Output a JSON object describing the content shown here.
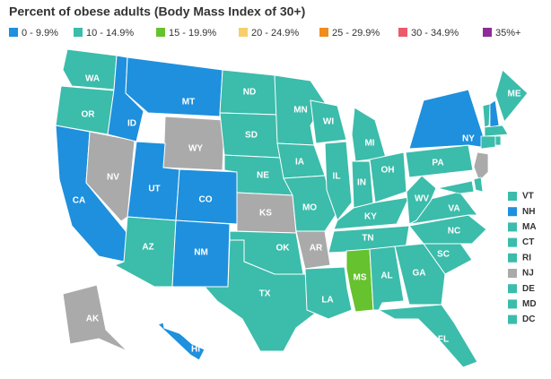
{
  "title": "Percent of obese adults (Body Mass Index of 30+)",
  "legend": [
    {
      "label": "0 - 9.9%",
      "color": "#1e90dd"
    },
    {
      "label": "10 - 14.9%",
      "color": "#3cbcab"
    },
    {
      "label": "15 - 19.9%",
      "color": "#66c22e"
    },
    {
      "label": "20 - 24.9%",
      "color": "#f5cf6b"
    },
    {
      "label": "25 - 29.9%",
      "color": "#f08c1e"
    },
    {
      "label": "30 - 34.9%",
      "color": "#ea5a6a"
    },
    {
      "label": "35%+",
      "color": "#8e2b99"
    }
  ],
  "states": [
    {
      "label": "WA",
      "color": "#3cbcab"
    },
    {
      "label": "OR",
      "color": "#3cbcab"
    },
    {
      "label": "CA",
      "color": "#1e90dd"
    },
    {
      "label": "NV",
      "color": "#aaaaaa"
    },
    {
      "label": "ID",
      "color": "#1e90dd"
    },
    {
      "label": "MT",
      "color": "#1e90dd"
    },
    {
      "label": "WY",
      "color": "#aaaaaa"
    },
    {
      "label": "UT",
      "color": "#1e90dd"
    },
    {
      "label": "CO",
      "color": "#1e90dd"
    },
    {
      "label": "AZ",
      "color": "#3cbcab"
    },
    {
      "label": "NM",
      "color": "#1e90dd"
    },
    {
      "label": "ND",
      "color": "#3cbcab"
    },
    {
      "label": "SD",
      "color": "#3cbcab"
    },
    {
      "label": "NE",
      "color": "#3cbcab"
    },
    {
      "label": "KS",
      "color": "#aaaaaa"
    },
    {
      "label": "OK",
      "color": "#3cbcab"
    },
    {
      "label": "TX",
      "color": "#3cbcab"
    },
    {
      "label": "MN",
      "color": "#3cbcab"
    },
    {
      "label": "IA",
      "color": "#3cbcab"
    },
    {
      "label": "MO",
      "color": "#3cbcab"
    },
    {
      "label": "AR",
      "color": "#aaaaaa"
    },
    {
      "label": "LA",
      "color": "#3cbcab"
    },
    {
      "label": "WI",
      "color": "#3cbcab"
    },
    {
      "label": "IL",
      "color": "#3cbcab"
    },
    {
      "label": "MI",
      "color": "#3cbcab"
    },
    {
      "label": "IN",
      "color": "#3cbcab"
    },
    {
      "label": "OH",
      "color": "#3cbcab"
    },
    {
      "label": "KY",
      "color": "#3cbcab"
    },
    {
      "label": "TN",
      "color": "#3cbcab"
    },
    {
      "label": "MS",
      "color": "#66c22e"
    },
    {
      "label": "AL",
      "color": "#3cbcab"
    },
    {
      "label": "GA",
      "color": "#3cbcab"
    },
    {
      "label": "FL",
      "color": "#3cbcab"
    },
    {
      "label": "SC",
      "color": "#3cbcab"
    },
    {
      "label": "NC",
      "color": "#3cbcab"
    },
    {
      "label": "VA",
      "color": "#3cbcab"
    },
    {
      "label": "WV",
      "color": "#3cbcab"
    },
    {
      "label": "PA",
      "color": "#3cbcab"
    },
    {
      "label": "NY",
      "color": "#1e90dd"
    },
    {
      "label": "ME",
      "color": "#3cbcab"
    },
    {
      "label": "AK",
      "color": "#aaaaaa"
    },
    {
      "label": "HI",
      "color": "#1e90dd"
    }
  ],
  "small_states": [
    {
      "label": "VT",
      "color": "#3cbcab"
    },
    {
      "label": "NH",
      "color": "#1e90dd"
    },
    {
      "label": "MA",
      "color": "#3cbcab"
    },
    {
      "label": "CT",
      "color": "#3cbcab"
    },
    {
      "label": "RI",
      "color": "#3cbcab"
    },
    {
      "label": "NJ",
      "color": "#aaaaaa"
    },
    {
      "label": "DE",
      "color": "#3cbcab"
    },
    {
      "label": "MD",
      "color": "#3cbcab"
    },
    {
      "label": "DC",
      "color": "#3cbcab"
    }
  ]
}
